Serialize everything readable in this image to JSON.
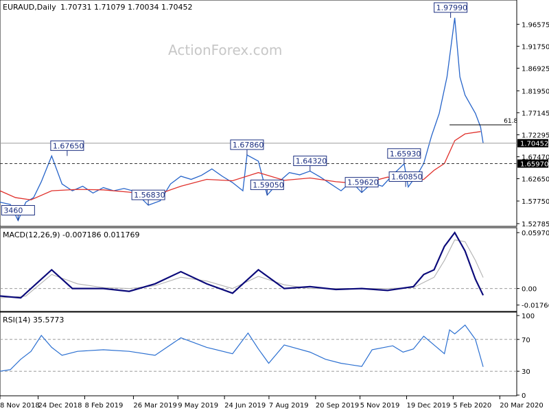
{
  "header": {
    "symbol_timeframe": "EURAUD,Daily",
    "ohlc": "1.70731 1.71079 1.70034 1.70452"
  },
  "watermark": "ActionForex.com",
  "colors": {
    "price": "#2563c9",
    "ema": "#e0302b",
    "macd": "#0b0a7a",
    "signal": "#b0b0b0",
    "rsi": "#2a6fd1",
    "label_box": "#1a2e80",
    "grid": "#888888",
    "axis_text": "#000000"
  },
  "chart_data": [
    {
      "name": "price",
      "type": "line",
      "ylim": [
        1.52785,
        2.01
      ],
      "y_ticks": [
        "1.96575",
        "1.91750",
        "1.86925",
        "1.81950",
        "1.77145",
        "1.72295",
        "1.67470",
        "1.62650",
        "1.57750",
        "1.52785"
      ],
      "current_price_label": "1.70452",
      "level_label": "1.65970",
      "level": 1.6597,
      "fib_label": "61.8",
      "fib_level": 1.7448,
      "callouts": [
        {
          "text": "1.97990",
          "x": 0.872,
          "y": 1.9799
        },
        {
          "text": "1.67650",
          "x": 0.13,
          "y": 1.6765
        },
        {
          "text": "1.67860",
          "x": 0.478,
          "y": 1.6786
        },
        {
          "text": "1.64320",
          "x": 0.6,
          "y": 1.6432
        },
        {
          "text": "1.65930",
          "x": 0.782,
          "y": 1.6593
        },
        {
          "text": "1.60850",
          "x": 0.785,
          "y": 1.6085
        },
        {
          "text": "1.59620",
          "x": 0.7,
          "y": 1.5962
        },
        {
          "text": "1.59050",
          "x": 0.517,
          "y": 1.5905
        },
        {
          "text": "1.56830",
          "x": 0.287,
          "y": 1.5683
        },
        {
          "text": "3460",
          "x": 0.035,
          "y": 1.5346
        }
      ],
      "price_series": [
        [
          0.0,
          1.575
        ],
        [
          0.02,
          1.57
        ],
        [
          0.035,
          1.5346
        ],
        [
          0.05,
          1.575
        ],
        [
          0.065,
          1.585
        ],
        [
          0.08,
          1.62
        ],
        [
          0.1,
          1.6765
        ],
        [
          0.12,
          1.615
        ],
        [
          0.14,
          1.6
        ],
        [
          0.16,
          1.61
        ],
        [
          0.18,
          1.595
        ],
        [
          0.2,
          1.607
        ],
        [
          0.22,
          1.6
        ],
        [
          0.24,
          1.605
        ],
        [
          0.26,
          1.599
        ],
        [
          0.287,
          1.5683
        ],
        [
          0.31,
          1.578
        ],
        [
          0.33,
          1.615
        ],
        [
          0.35,
          1.632
        ],
        [
          0.37,
          1.625
        ],
        [
          0.39,
          1.634
        ],
        [
          0.41,
          1.648
        ],
        [
          0.43,
          1.632
        ],
        [
          0.45,
          1.618
        ],
        [
          0.47,
          1.6
        ],
        [
          0.478,
          1.6786
        ],
        [
          0.5,
          1.665
        ],
        [
          0.517,
          1.5905
        ],
        [
          0.54,
          1.62
        ],
        [
          0.56,
          1.64
        ],
        [
          0.58,
          1.635
        ],
        [
          0.6,
          1.6432
        ],
        [
          0.62,
          1.63
        ],
        [
          0.64,
          1.615
        ],
        [
          0.66,
          1.6
        ],
        [
          0.68,
          1.62
        ],
        [
          0.7,
          1.5962
        ],
        [
          0.72,
          1.617
        ],
        [
          0.74,
          1.61
        ],
        [
          0.76,
          1.635
        ],
        [
          0.782,
          1.6593
        ],
        [
          0.79,
          1.6085
        ],
        [
          0.81,
          1.64
        ],
        [
          0.82,
          1.66
        ],
        [
          0.835,
          1.72
        ],
        [
          0.85,
          1.77
        ],
        [
          0.865,
          1.85
        ],
        [
          0.88,
          1.9799
        ],
        [
          0.89,
          1.85
        ],
        [
          0.9,
          1.81
        ],
        [
          0.91,
          1.79
        ],
        [
          0.92,
          1.77
        ],
        [
          0.93,
          1.74
        ],
        [
          0.935,
          1.7045
        ]
      ],
      "ema_series": [
        [
          0.0,
          1.6
        ],
        [
          0.03,
          1.585
        ],
        [
          0.06,
          1.58
        ],
        [
          0.1,
          1.6
        ],
        [
          0.15,
          1.603
        ],
        [
          0.2,
          1.602
        ],
        [
          0.25,
          1.597
        ],
        [
          0.3,
          1.59
        ],
        [
          0.35,
          1.61
        ],
        [
          0.4,
          1.625
        ],
        [
          0.45,
          1.622
        ],
        [
          0.5,
          1.64
        ],
        [
          0.55,
          1.623
        ],
        [
          0.6,
          1.628
        ],
        [
          0.65,
          1.62
        ],
        [
          0.7,
          1.615
        ],
        [
          0.75,
          1.63
        ],
        [
          0.8,
          1.622
        ],
        [
          0.82,
          1.625
        ],
        [
          0.84,
          1.645
        ],
        [
          0.86,
          1.66
        ],
        [
          0.88,
          1.71
        ],
        [
          0.9,
          1.725
        ],
        [
          0.93,
          1.73
        ]
      ]
    },
    {
      "name": "macd",
      "label": "MACD(12,26,9) -0.007186 0.011769",
      "ylim": [
        -0.023,
        0.062
      ],
      "y_ticks": [
        "0.059708",
        "0.00",
        "-0.017661"
      ],
      "macd_series": [
        [
          0.0,
          -0.008
        ],
        [
          0.04,
          -0.01
        ],
        [
          0.08,
          0.01
        ],
        [
          0.1,
          0.02
        ],
        [
          0.14,
          0.0
        ],
        [
          0.2,
          0.0
        ],
        [
          0.25,
          -0.003
        ],
        [
          0.3,
          0.005
        ],
        [
          0.35,
          0.018
        ],
        [
          0.4,
          0.005
        ],
        [
          0.45,
          -0.005
        ],
        [
          0.5,
          0.02
        ],
        [
          0.55,
          0.0
        ],
        [
          0.6,
          0.002
        ],
        [
          0.65,
          -0.001
        ],
        [
          0.7,
          0.0
        ],
        [
          0.75,
          -0.002
        ],
        [
          0.8,
          0.002
        ],
        [
          0.82,
          0.015
        ],
        [
          0.84,
          0.02
        ],
        [
          0.86,
          0.045
        ],
        [
          0.88,
          0.0597
        ],
        [
          0.9,
          0.04
        ],
        [
          0.92,
          0.01
        ],
        [
          0.935,
          -0.007186
        ]
      ],
      "signal_series": [
        [
          0.0,
          -0.01
        ],
        [
          0.05,
          -0.008
        ],
        [
          0.1,
          0.015
        ],
        [
          0.15,
          0.005
        ],
        [
          0.2,
          0.001
        ],
        [
          0.25,
          0.0
        ],
        [
          0.3,
          0.003
        ],
        [
          0.35,
          0.012
        ],
        [
          0.4,
          0.008
        ],
        [
          0.45,
          0.0
        ],
        [
          0.5,
          0.013
        ],
        [
          0.55,
          0.004
        ],
        [
          0.6,
          0.0
        ],
        [
          0.65,
          0.0
        ],
        [
          0.7,
          0.0
        ],
        [
          0.75,
          0.0
        ],
        [
          0.8,
          0.001
        ],
        [
          0.84,
          0.012
        ],
        [
          0.86,
          0.03
        ],
        [
          0.88,
          0.052
        ],
        [
          0.9,
          0.05
        ],
        [
          0.92,
          0.03
        ],
        [
          0.935,
          0.011769
        ]
      ]
    },
    {
      "name": "rsi",
      "label": "RSI(14) 35.5773",
      "ylim": [
        0,
        100
      ],
      "y_ticks": [
        "100",
        "70",
        "30",
        "0"
      ],
      "rsi_series": [
        [
          0.0,
          30
        ],
        [
          0.02,
          32
        ],
        [
          0.04,
          45
        ],
        [
          0.06,
          55
        ],
        [
          0.08,
          75
        ],
        [
          0.1,
          60
        ],
        [
          0.12,
          50
        ],
        [
          0.15,
          55
        ],
        [
          0.2,
          57
        ],
        [
          0.25,
          55
        ],
        [
          0.3,
          50
        ],
        [
          0.35,
          72
        ],
        [
          0.4,
          60
        ],
        [
          0.45,
          52
        ],
        [
          0.48,
          78
        ],
        [
          0.5,
          58
        ],
        [
          0.52,
          40
        ],
        [
          0.55,
          63
        ],
        [
          0.6,
          54
        ],
        [
          0.63,
          45
        ],
        [
          0.66,
          40
        ],
        [
          0.7,
          36
        ],
        [
          0.72,
          57
        ],
        [
          0.76,
          62
        ],
        [
          0.78,
          54
        ],
        [
          0.8,
          58
        ],
        [
          0.82,
          74
        ],
        [
          0.84,
          63
        ],
        [
          0.86,
          52
        ],
        [
          0.87,
          82
        ],
        [
          0.88,
          77
        ],
        [
          0.9,
          88
        ],
        [
          0.92,
          70
        ],
        [
          0.935,
          35.5773
        ]
      ]
    }
  ],
  "x_labels": [
    "8 Nov 2018",
    "24 Dec 2018",
    "8 Feb 2019",
    "26 Mar 2019",
    "9 May 2019",
    "24 Jun 2019",
    "7 Aug 2019",
    "20 Sep 2019",
    "5 Nov 2019",
    "19 Dec 2019",
    "5 Feb 2020",
    "20 Mar 2020"
  ]
}
